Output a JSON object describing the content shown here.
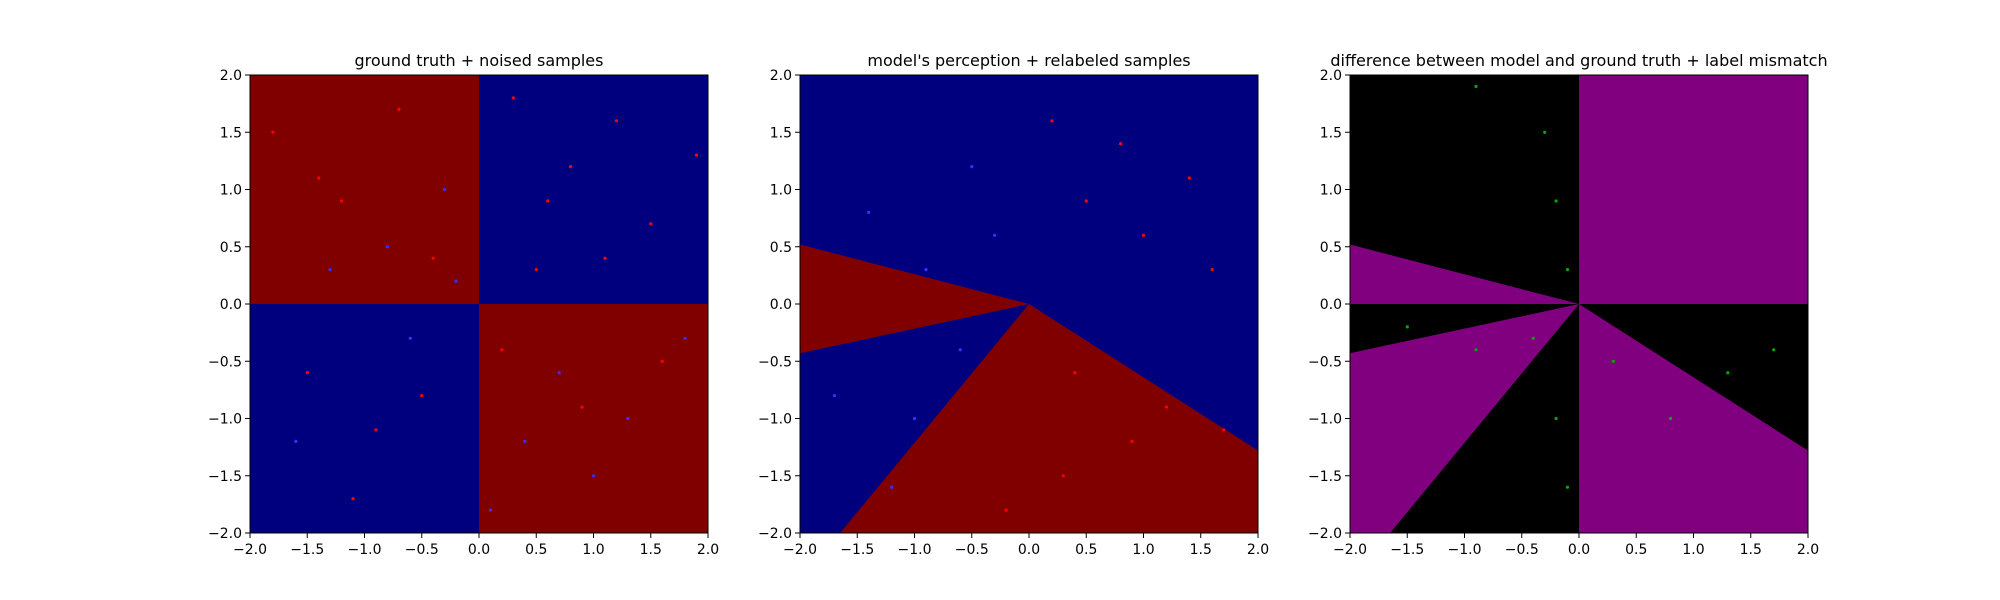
{
  "chart_data": [
    {
      "type": "scatter",
      "title": "ground truth + noised samples",
      "xlim": [
        -2.0,
        2.0
      ],
      "ylim": [
        -2.0,
        2.0
      ],
      "xticks": [
        "−2.0",
        "−1.5",
        "−1.0",
        "−0.5",
        "0.0",
        "0.5",
        "1.0",
        "1.5",
        "2.0"
      ],
      "yticks": [
        "2.0",
        "1.5",
        "1.0",
        "0.5",
        "0.0",
        "−0.5",
        "−1.0",
        "−1.5",
        "−2.0"
      ],
      "background": "quadrants: red where x*y<0, blue where x*y>0",
      "series": [
        {
          "color": "#ff0000",
          "values": [
            [
              -1.8,
              1.5
            ],
            [
              -1.2,
              0.9
            ],
            [
              -0.7,
              1.7
            ],
            [
              -0.4,
              0.4
            ],
            [
              0.3,
              1.8
            ],
            [
              0.8,
              1.2
            ],
            [
              1.5,
              0.7
            ],
            [
              1.9,
              1.3
            ],
            [
              0.5,
              0.3
            ],
            [
              1.2,
              1.6
            ],
            [
              -1.5,
              -0.6
            ],
            [
              -0.9,
              -1.1
            ],
            [
              -0.5,
              -0.8
            ],
            [
              -1.1,
              -1.7
            ],
            [
              0.2,
              -0.4
            ],
            [
              0.9,
              -0.9
            ],
            [
              1.6,
              -0.5
            ],
            [
              -1.4,
              1.1
            ],
            [
              0.6,
              0.9
            ],
            [
              1.1,
              0.4
            ]
          ]
        },
        {
          "color": "#3333ff",
          "values": [
            [
              -1.3,
              0.3
            ],
            [
              -0.8,
              0.5
            ],
            [
              -0.3,
              1.0
            ],
            [
              0.4,
              -1.2
            ],
            [
              1.0,
              -1.5
            ],
            [
              1.8,
              -0.3
            ],
            [
              0.7,
              -0.6
            ],
            [
              -1.6,
              -1.2
            ],
            [
              -0.6,
              -0.3
            ],
            [
              1.3,
              -1.0
            ],
            [
              -0.2,
              0.2
            ],
            [
              0.1,
              -1.8
            ]
          ]
        }
      ]
    },
    {
      "type": "scatter",
      "title": "model's perception + relabeled samples",
      "xlim": [
        -2.0,
        2.0
      ],
      "ylim": [
        -2.0,
        2.0
      ],
      "xticks": [
        "−2.0",
        "−1.5",
        "−1.0",
        "−0.5",
        "0.0",
        "0.5",
        "1.0",
        "1.5",
        "2.0"
      ],
      "yticks": [
        "2.0",
        "1.5",
        "1.0",
        "0.5",
        "0.0",
        "−0.5",
        "−1.0",
        "−1.5",
        "−2.0"
      ],
      "background": "blue everywhere except two red wedges from the origin",
      "series": [
        {
          "color": "#ff0000",
          "values": [
            [
              0.2,
              1.6
            ],
            [
              0.5,
              0.9
            ],
            [
              1.0,
              0.6
            ],
            [
              1.6,
              0.3
            ],
            [
              0.8,
              1.4
            ],
            [
              1.4,
              1.1
            ],
            [
              0.4,
              -0.6
            ],
            [
              0.9,
              -1.2
            ],
            [
              0.3,
              -1.5
            ],
            [
              1.2,
              -0.9
            ],
            [
              -0.2,
              -1.8
            ],
            [
              1.7,
              -1.1
            ]
          ]
        },
        {
          "color": "#3333ff",
          "values": [
            [
              -1.4,
              0.8
            ],
            [
              -0.9,
              0.3
            ],
            [
              -0.5,
              1.2
            ],
            [
              -1.7,
              -0.8
            ],
            [
              -1.0,
              -1.0
            ],
            [
              -0.6,
              -0.4
            ],
            [
              -1.2,
              -1.6
            ],
            [
              -0.3,
              0.6
            ]
          ]
        }
      ]
    },
    {
      "type": "scatter",
      "title": "difference between model and ground truth + label mismatch",
      "xlim": [
        -2.0,
        2.0
      ],
      "ylim": [
        -2.0,
        2.0
      ],
      "xticks": [
        "−2.0",
        "−1.5",
        "−1.0",
        "−0.5",
        "0.0",
        "0.5",
        "1.0",
        "1.5",
        "2.0"
      ],
      "yticks": [
        "2.0",
        "1.5",
        "1.0",
        "0.5",
        "0.0",
        "−0.5",
        "−1.0",
        "−1.5",
        "−2.0"
      ],
      "background": "purple where model disagrees with ground truth, black elsewhere",
      "series": [
        {
          "color": "#00aa00",
          "values": [
            [
              -0.3,
              1.5
            ],
            [
              -0.2,
              0.9
            ],
            [
              -0.1,
              0.3
            ],
            [
              -0.4,
              -0.3
            ],
            [
              -0.2,
              -1.0
            ],
            [
              -0.1,
              -1.6
            ],
            [
              -1.5,
              -0.2
            ],
            [
              -0.9,
              -0.4
            ],
            [
              0.3,
              -0.5
            ],
            [
              0.8,
              -1.0
            ],
            [
              1.3,
              -0.6
            ],
            [
              1.7,
              -0.4
            ],
            [
              -0.9,
              1.9
            ]
          ]
        }
      ]
    }
  ]
}
